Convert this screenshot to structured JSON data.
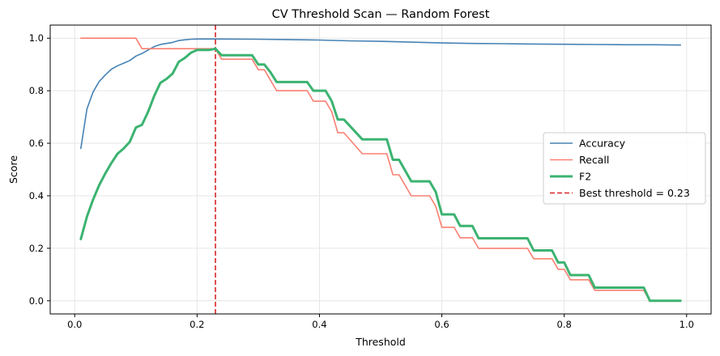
{
  "chart_data": {
    "type": "line",
    "title": "CV Threshold Scan — Random Forest",
    "xlabel": "Threshold",
    "ylabel": "Score",
    "xlim": [
      -0.04,
      1.04
    ],
    "ylim": [
      -0.05,
      1.05
    ],
    "xticks": [
      0.0,
      0.2,
      0.4,
      0.6,
      0.8,
      1.0
    ],
    "xtick_labels": [
      "0.0",
      "0.2",
      "0.4",
      "0.6",
      "0.8",
      "1.0"
    ],
    "yticks": [
      0.0,
      0.2,
      0.4,
      0.6,
      0.8,
      1.0
    ],
    "ytick_labels": [
      "0.0",
      "0.2",
      "0.4",
      "0.6",
      "0.8",
      "1.0"
    ],
    "grid": true,
    "legend_position": "center-right",
    "best_threshold": {
      "value": 0.23,
      "label": "Best threshold = 0.23",
      "color": "#d62728"
    },
    "series": [
      {
        "name": "Accuracy",
        "color": "#4682b4",
        "width": 1.6,
        "x": [
          0.01,
          0.02,
          0.03,
          0.04,
          0.05,
          0.06,
          0.07,
          0.08,
          0.09,
          0.1,
          0.11,
          0.12,
          0.13,
          0.14,
          0.15,
          0.16,
          0.17,
          0.18,
          0.19,
          0.2,
          0.23,
          0.3,
          0.35,
          0.4,
          0.45,
          0.5,
          0.55,
          0.6,
          0.65,
          0.7,
          0.75,
          0.8,
          0.85,
          0.9,
          0.95,
          0.99
        ],
        "y": [
          0.58,
          0.73,
          0.795,
          0.835,
          0.86,
          0.882,
          0.895,
          0.905,
          0.915,
          0.932,
          0.942,
          0.955,
          0.968,
          0.976,
          0.98,
          0.984,
          0.991,
          0.994,
          0.996,
          0.997,
          0.997,
          0.996,
          0.995,
          0.993,
          0.99,
          0.988,
          0.985,
          0.982,
          0.98,
          0.979,
          0.978,
          0.977,
          0.976,
          0.975,
          0.975,
          0.974
        ]
      },
      {
        "name": "Recall",
        "color": "#fa8072",
        "width": 1.6,
        "x": [
          0.01,
          0.1,
          0.11,
          0.2,
          0.23,
          0.24,
          0.29,
          0.3,
          0.31,
          0.32,
          0.33,
          0.37,
          0.38,
          0.39,
          0.4,
          0.41,
          0.42,
          0.43,
          0.44,
          0.47,
          0.51,
          0.52,
          0.53,
          0.55,
          0.58,
          0.59,
          0.6,
          0.62,
          0.63,
          0.65,
          0.66,
          0.74,
          0.75,
          0.78,
          0.79,
          0.8,
          0.81,
          0.84,
          0.85,
          0.93,
          0.94,
          0.99
        ],
        "y": [
          1.0,
          1.0,
          0.96,
          0.96,
          0.96,
          0.92,
          0.92,
          0.88,
          0.88,
          0.84,
          0.8,
          0.8,
          0.8,
          0.76,
          0.76,
          0.76,
          0.72,
          0.64,
          0.64,
          0.56,
          0.56,
          0.48,
          0.48,
          0.4,
          0.4,
          0.36,
          0.28,
          0.28,
          0.24,
          0.24,
          0.2,
          0.2,
          0.16,
          0.16,
          0.12,
          0.12,
          0.08,
          0.08,
          0.04,
          0.04,
          0.0,
          0.0
        ]
      },
      {
        "name": "F2",
        "color": "#3cb371",
        "width": 3,
        "x": [
          0.01,
          0.02,
          0.03,
          0.04,
          0.05,
          0.06,
          0.07,
          0.08,
          0.09,
          0.1,
          0.11,
          0.12,
          0.13,
          0.14,
          0.15,
          0.16,
          0.17,
          0.18,
          0.19,
          0.2,
          0.22,
          0.23,
          0.24,
          0.29,
          0.3,
          0.31,
          0.32,
          0.33,
          0.38,
          0.39,
          0.41,
          0.42,
          0.43,
          0.44,
          0.47,
          0.51,
          0.52,
          0.53,
          0.55,
          0.58,
          0.59,
          0.6,
          0.62,
          0.63,
          0.65,
          0.66,
          0.74,
          0.75,
          0.78,
          0.79,
          0.8,
          0.81,
          0.84,
          0.85,
          0.93,
          0.94,
          0.99
        ],
        "y": [
          0.235,
          0.32,
          0.385,
          0.44,
          0.485,
          0.525,
          0.56,
          0.58,
          0.605,
          0.66,
          0.67,
          0.72,
          0.78,
          0.83,
          0.845,
          0.865,
          0.91,
          0.925,
          0.945,
          0.955,
          0.955,
          0.96,
          0.935,
          0.935,
          0.9,
          0.9,
          0.87,
          0.833,
          0.833,
          0.8,
          0.8,
          0.76,
          0.69,
          0.69,
          0.615,
          0.615,
          0.537,
          0.537,
          0.455,
          0.455,
          0.415,
          0.329,
          0.329,
          0.285,
          0.285,
          0.238,
          0.238,
          0.192,
          0.192,
          0.146,
          0.146,
          0.098,
          0.098,
          0.05,
          0.05,
          0.0,
          0.0
        ]
      }
    ]
  }
}
